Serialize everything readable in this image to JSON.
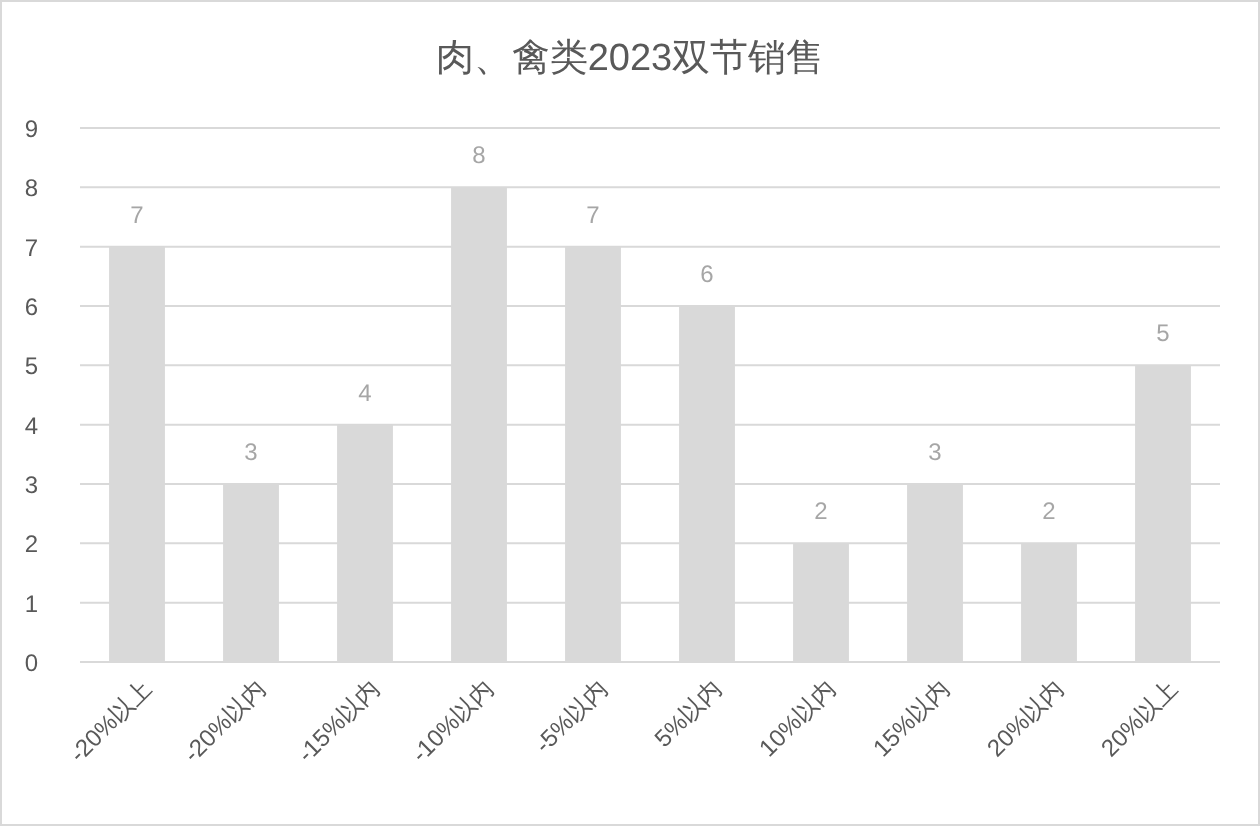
{
  "chart_data": {
    "type": "bar",
    "title": "肉、禽类2023双节销售",
    "categories": [
      "-20%以上",
      "-20%以内",
      "-15%以内",
      "-10%以内",
      "-5%以内",
      "5%以内",
      "10%以内",
      "15%以内",
      "20%以内",
      "20%以上"
    ],
    "values": [
      7,
      3,
      4,
      8,
      7,
      6,
      2,
      3,
      2,
      5
    ],
    "color": "#d9d9d9",
    "ylim": [
      0,
      9
    ],
    "yticks": [
      0,
      1,
      2,
      3,
      4,
      5,
      6,
      7,
      8,
      9
    ],
    "grid": "y",
    "data_labels": true
  }
}
